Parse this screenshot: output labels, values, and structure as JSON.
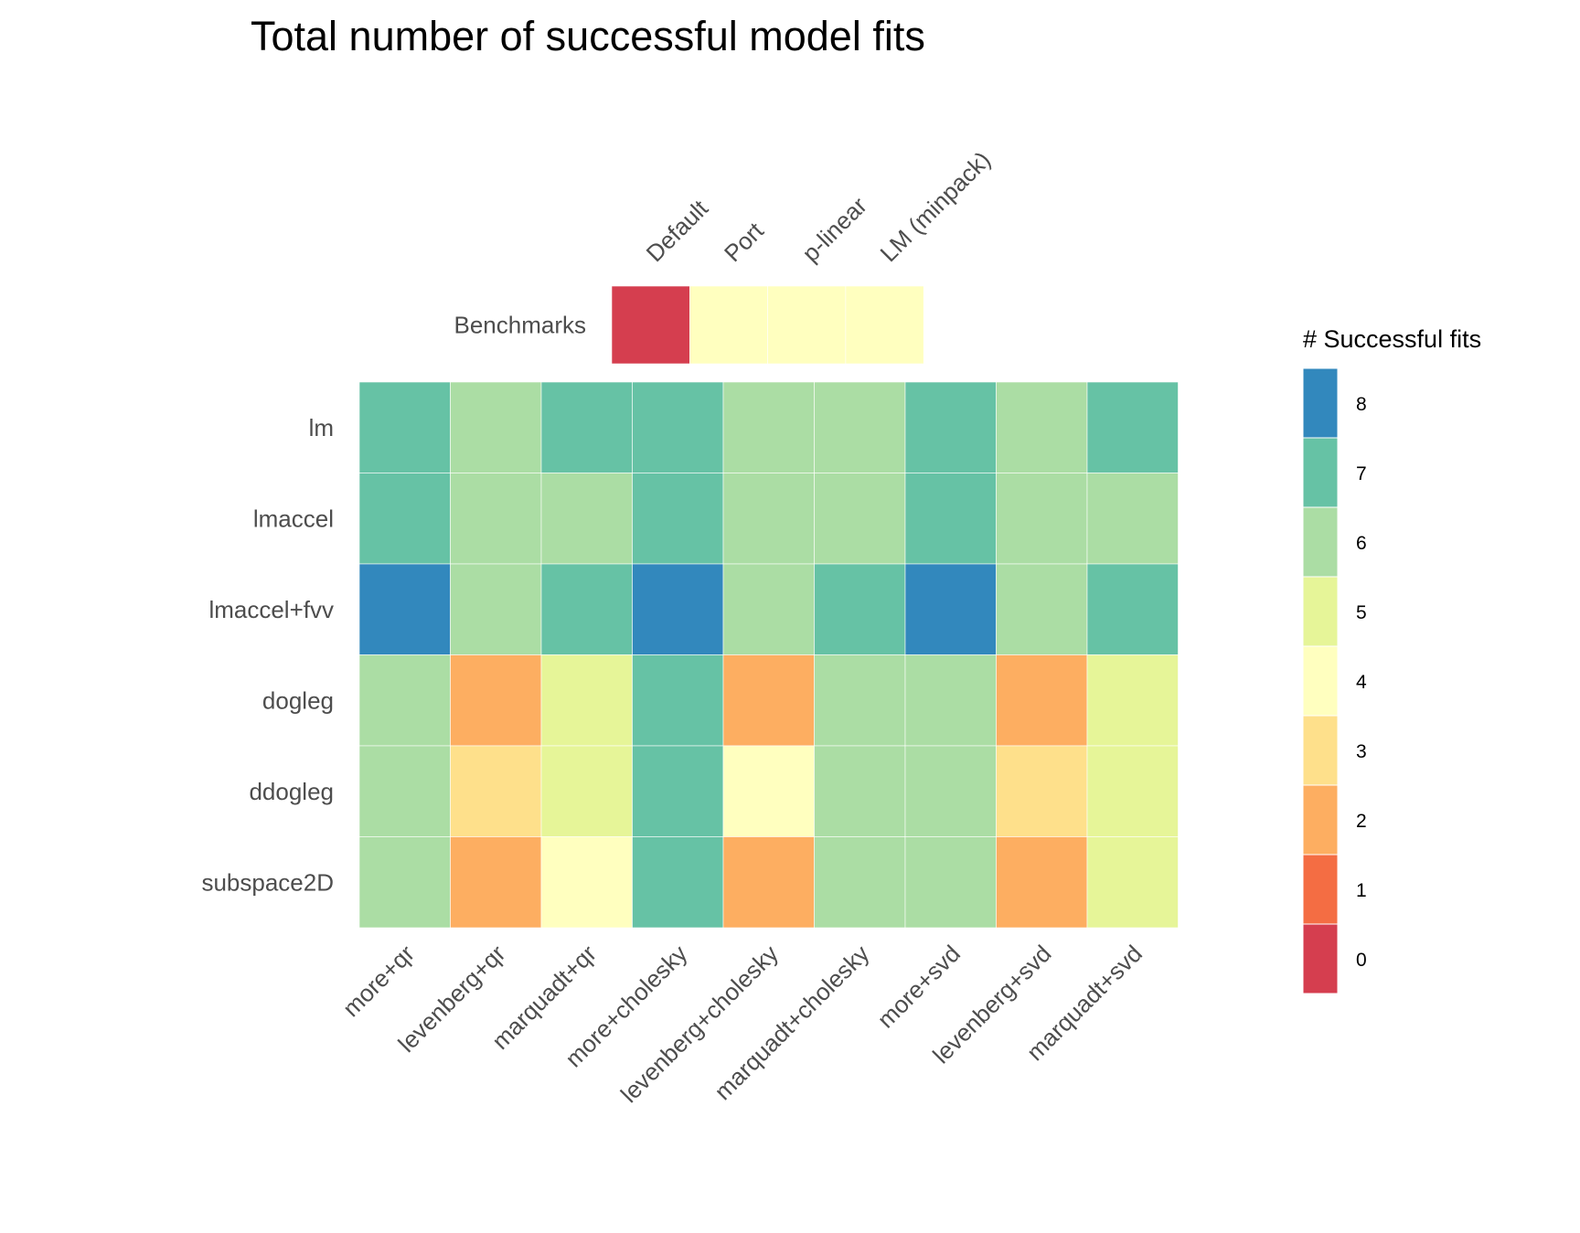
{
  "chart_data": [
    {
      "type": "heatmap",
      "title": "Total number of successful model fits",
      "rows": [
        "Benchmarks"
      ],
      "columns": [
        "Default",
        "Port",
        "p-linear",
        "LM (minpack)"
      ],
      "values": [
        [
          0,
          4,
          4,
          4
        ]
      ]
    },
    {
      "type": "heatmap",
      "rows": [
        "lm",
        "lmaccel",
        "lmaccel+fvv",
        "dogleg",
        "ddogleg",
        "subspace2D"
      ],
      "columns": [
        "more+qr",
        "levenberg+qr",
        "marquadt+qr",
        "more+cholesky",
        "levenberg+cholesky",
        "marquadt+cholesky",
        "more+svd",
        "levenberg+svd",
        "marquadt+svd"
      ],
      "values": [
        [
          7,
          6,
          7,
          7,
          6,
          6,
          7,
          6,
          7
        ],
        [
          7,
          6,
          6,
          7,
          6,
          6,
          7,
          6,
          6
        ],
        [
          8,
          6,
          7,
          8,
          6,
          7,
          8,
          6,
          7
        ],
        [
          6,
          2,
          5,
          7,
          2,
          6,
          6,
          2,
          5
        ],
        [
          6,
          3,
          5,
          7,
          4,
          6,
          6,
          3,
          5
        ],
        [
          6,
          2,
          4,
          7,
          2,
          6,
          6,
          2,
          5
        ]
      ]
    }
  ],
  "legend": {
    "title": "# Successful fits",
    "levels": [
      8,
      7,
      6,
      5,
      4,
      3,
      2,
      1,
      0
    ],
    "level_labels": [
      "8",
      "7",
      "6",
      "5",
      "4",
      "3",
      "2",
      "1",
      "0"
    ],
    "colors": {
      "0": "#d53e4f",
      "1": "#f46d43",
      "2": "#fdae61",
      "3": "#fee08b",
      "4": "#ffffbf",
      "5": "#e6f598",
      "6": "#abdda4",
      "7": "#66c2a5",
      "8": "#3288bd"
    }
  }
}
